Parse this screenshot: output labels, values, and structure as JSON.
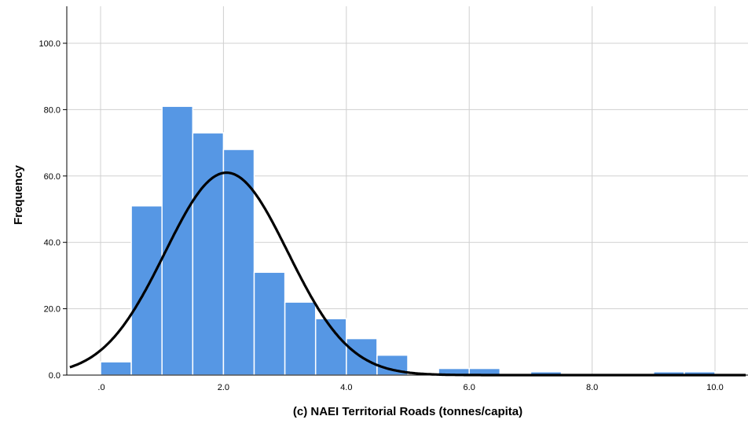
{
  "chart_data": {
    "type": "bar",
    "subtype": "histogram",
    "xlabel": "(c) NAEI Territorial Roads (tonnes/capita)",
    "ylabel": "Frequency",
    "xlim": [
      -0.5,
      10.5
    ],
    "ylim": [
      0,
      110
    ],
    "xticks": [
      {
        "value": 0,
        "label": ".0"
      },
      {
        "value": 2,
        "label": "2.0"
      },
      {
        "value": 4,
        "label": "4.0"
      },
      {
        "value": 6,
        "label": "6.0"
      },
      {
        "value": 8,
        "label": "8.0"
      },
      {
        "value": 10,
        "label": "10.0"
      }
    ],
    "yticks": [
      {
        "value": 0,
        "label": "0.0"
      },
      {
        "value": 20,
        "label": "20.0"
      },
      {
        "value": 40,
        "label": "40.0"
      },
      {
        "value": 60,
        "label": "60.0"
      },
      {
        "value": 80,
        "label": "80.0"
      },
      {
        "value": 100,
        "label": "100.0"
      }
    ],
    "bin_width": 0.5,
    "bins": [
      {
        "start": 0.0,
        "count": 4
      },
      {
        "start": 0.5,
        "count": 51
      },
      {
        "start": 1.0,
        "count": 81
      },
      {
        "start": 1.5,
        "count": 73
      },
      {
        "start": 2.0,
        "count": 68
      },
      {
        "start": 2.5,
        "count": 31
      },
      {
        "start": 3.0,
        "count": 22
      },
      {
        "start": 3.5,
        "count": 17
      },
      {
        "start": 4.0,
        "count": 11
      },
      {
        "start": 4.5,
        "count": 6
      },
      {
        "start": 5.5,
        "count": 2
      },
      {
        "start": 6.0,
        "count": 2
      },
      {
        "start": 7.0,
        "count": 1
      },
      {
        "start": 9.0,
        "count": 1
      },
      {
        "start": 9.5,
        "count": 1
      }
    ],
    "normal_curve": {
      "mean": 2.05,
      "sd": 1.0,
      "peak": 61
    },
    "grid": true,
    "colors": {
      "bar": "#5697e4",
      "curve": "#000000",
      "grid": "#d0d0d0"
    }
  }
}
